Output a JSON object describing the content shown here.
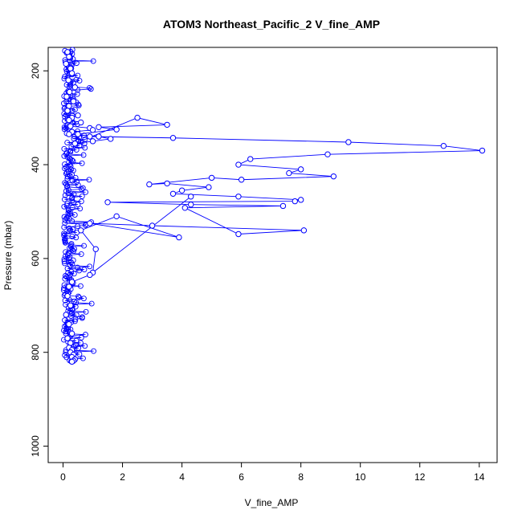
{
  "chart_data": {
    "type": "line",
    "title": "ATOM3 Northeast_Pacific_2 V_fine_AMP",
    "xlabel": "V_fine_AMP",
    "ylabel": "Pressure (mbar)",
    "xlim": [
      -0.5,
      14.6
    ],
    "ylim": [
      1035,
      150
    ],
    "y_reversed": true,
    "x_ticks": [
      0,
      2,
      4,
      6,
      8,
      10,
      12,
      14
    ],
    "y_ticks": [
      200,
      400,
      600,
      800,
      1000
    ],
    "marker": "open-circle",
    "line": true,
    "color": "#0000ff",
    "grid": false,
    "series": [
      {
        "x": [
          0.15,
          0.2,
          0.1,
          0.25,
          0.3,
          0.18,
          0.4,
          0.22,
          0.12,
          0.35,
          0.2,
          0.15,
          0.5,
          0.3,
          0.2,
          0.6,
          0.25,
          0.9,
          1.0,
          0.3,
          0.2,
          1.2,
          1.6,
          1.0,
          0.4,
          2.5,
          3.5,
          1.2,
          1.8,
          0.5,
          0.9,
          3.7,
          9.6,
          12.8,
          14.1,
          8.9,
          6.3,
          5.9,
          8.0,
          7.6,
          9.1,
          6.0,
          5.0,
          2.9,
          3.5,
          4.9,
          4.0,
          3.7,
          5.9,
          8.0,
          7.8,
          1.5,
          4.3,
          7.4,
          4.1,
          5.9,
          8.1,
          3.0,
          0.9,
          3.9,
          1.8,
          0.6,
          1.1,
          1.0,
          4.3,
          0.9,
          0.3,
          0.2,
          0.15,
          0.25,
          0.1,
          0.2,
          0.3,
          0.15,
          0.25,
          0.2,
          0.3,
          0.25,
          0.35,
          0.3,
          0.4,
          0.35,
          0.3
        ],
        "y": [
          160,
          170,
          185,
          195,
          205,
          220,
          235,
          245,
          255,
          265,
          275,
          285,
          295,
          300,
          305,
          310,
          318,
          322,
          326,
          330,
          335,
          340,
          345,
          350,
          355,
          300,
          315,
          320,
          325,
          335,
          340,
          343,
          352,
          360,
          370,
          378,
          388,
          400,
          410,
          418,
          425,
          432,
          428,
          442,
          440,
          448,
          455,
          462,
          468,
          475,
          478,
          480,
          485,
          488,
          492,
          548,
          540,
          530,
          525,
          555,
          510,
          540,
          580,
          630,
          468,
          635,
          650,
          660,
          680,
          700,
          720,
          740,
          760,
          770,
          780,
          790,
          795,
          800,
          805,
          810,
          815,
          818,
          820
        ]
      }
    ],
    "scatter_cloud": {
      "x": [
        0.05,
        0.1,
        0.15,
        0.2,
        0.25,
        0.3,
        0.35,
        0.4,
        0.45,
        0.5,
        0.6,
        0.7,
        0.8
      ],
      "y_range": [
        155,
        820
      ]
    }
  }
}
